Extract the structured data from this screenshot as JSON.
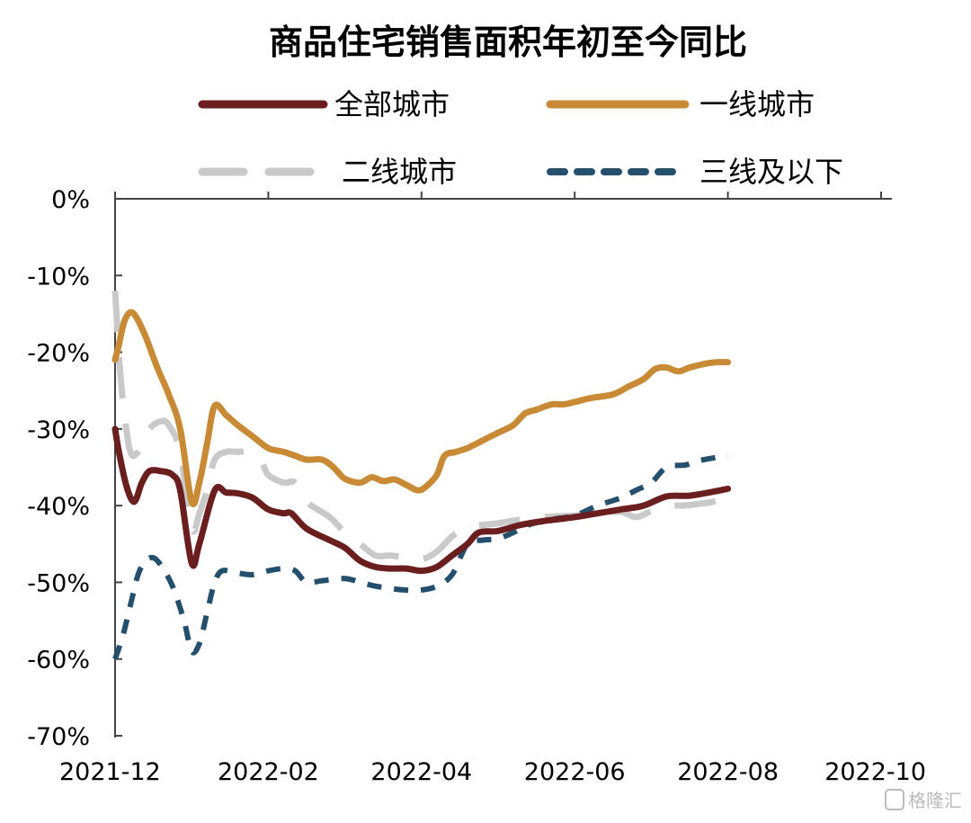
{
  "chart_data": {
    "type": "line",
    "title": "商品住宅销售面积年初至今同比",
    "xlabel": "",
    "ylabel": "",
    "x_ticks": [
      "2021-12",
      "2022-02",
      "2022-04",
      "2022-06",
      "2022-08",
      "2022-10"
    ],
    "y_ticks": [
      "0%",
      "-10%",
      "-20%",
      "-30%",
      "-40%",
      "-50%",
      "-60%",
      "-70%"
    ],
    "ylim": [
      -70,
      0
    ],
    "grid": false,
    "legend_position": "top",
    "series": [
      {
        "name": "全部城市",
        "color": "#6b1e1e",
        "dash": "solid",
        "points": [
          [
            0,
            -30
          ],
          [
            0.05,
            -33
          ],
          [
            0.15,
            -37.5
          ],
          [
            0.25,
            -39.5
          ],
          [
            0.35,
            -37
          ],
          [
            0.45,
            -35.5
          ],
          [
            0.6,
            -35.5
          ],
          [
            0.75,
            -36
          ],
          [
            0.85,
            -38
          ],
          [
            1.0,
            -47.5
          ],
          [
            1.1,
            -45
          ],
          [
            1.3,
            -38
          ],
          [
            1.45,
            -38.3
          ],
          [
            1.6,
            -38.4
          ],
          [
            1.8,
            -39
          ],
          [
            2.0,
            -40.5
          ],
          [
            2.2,
            -41
          ],
          [
            2.3,
            -41
          ],
          [
            2.5,
            -43
          ],
          [
            2.8,
            -44.5
          ],
          [
            3.0,
            -45.5
          ],
          [
            3.2,
            -47.2
          ],
          [
            3.4,
            -48
          ],
          [
            3.6,
            -48.2
          ],
          [
            3.8,
            -48.2
          ],
          [
            4.0,
            -48.5
          ],
          [
            4.2,
            -48
          ],
          [
            4.4,
            -46.5
          ],
          [
            4.6,
            -45
          ],
          [
            4.75,
            -43.5
          ],
          [
            5.0,
            -43.3
          ],
          [
            5.3,
            -42.5
          ],
          [
            5.6,
            -42
          ],
          [
            6.0,
            -41.5
          ],
          [
            6.3,
            -41
          ],
          [
            6.6,
            -40.5
          ],
          [
            6.9,
            -40
          ],
          [
            7.2,
            -38.8
          ],
          [
            7.5,
            -38.7
          ],
          [
            7.8,
            -38.2
          ],
          [
            8.0,
            -37.8
          ]
        ]
      },
      {
        "name": "一线城市",
        "color": "#c88a35",
        "dash": "solid",
        "points": [
          [
            0,
            -21
          ],
          [
            0.05,
            -19
          ],
          [
            0.12,
            -16
          ],
          [
            0.2,
            -14.8
          ],
          [
            0.28,
            -15.5
          ],
          [
            0.4,
            -18
          ],
          [
            0.55,
            -22
          ],
          [
            0.7,
            -25.5
          ],
          [
            0.85,
            -30
          ],
          [
            1.0,
            -39.5
          ],
          [
            1.1,
            -37
          ],
          [
            1.2,
            -32
          ],
          [
            1.3,
            -27
          ],
          [
            1.45,
            -28.2
          ],
          [
            1.6,
            -29.5
          ],
          [
            1.8,
            -31
          ],
          [
            2.0,
            -32.5
          ],
          [
            2.2,
            -33
          ],
          [
            2.35,
            -33.5
          ],
          [
            2.5,
            -34
          ],
          [
            2.7,
            -34
          ],
          [
            2.85,
            -35
          ],
          [
            3.0,
            -36.5
          ],
          [
            3.2,
            -37
          ],
          [
            3.35,
            -36.3
          ],
          [
            3.5,
            -36.8
          ],
          [
            3.65,
            -36.6
          ],
          [
            3.8,
            -37.3
          ],
          [
            3.95,
            -38
          ],
          [
            4.05,
            -37.6
          ],
          [
            4.2,
            -36
          ],
          [
            4.3,
            -33.5
          ],
          [
            4.45,
            -33
          ],
          [
            4.6,
            -32.5
          ],
          [
            4.8,
            -31.5
          ],
          [
            5.0,
            -30.5
          ],
          [
            5.2,
            -29.5
          ],
          [
            5.35,
            -28
          ],
          [
            5.5,
            -27.5
          ],
          [
            5.7,
            -26.8
          ],
          [
            5.85,
            -26.8
          ],
          [
            6.0,
            -26.5
          ],
          [
            6.2,
            -26
          ],
          [
            6.5,
            -25.5
          ],
          [
            6.7,
            -24.5
          ],
          [
            6.9,
            -23.5
          ],
          [
            7.05,
            -22.2
          ],
          [
            7.2,
            -22
          ],
          [
            7.35,
            -22.5
          ],
          [
            7.5,
            -22
          ],
          [
            7.7,
            -21.5
          ],
          [
            7.85,
            -21.3
          ],
          [
            8.0,
            -21.3
          ]
        ]
      },
      {
        "name": "二线城市",
        "color": "#c9c9c9",
        "dash": "long",
        "points": [
          [
            0,
            -12
          ],
          [
            0.03,
            -17
          ],
          [
            0.07,
            -23
          ],
          [
            0.12,
            -28
          ],
          [
            0.2,
            -33
          ],
          [
            0.3,
            -33
          ],
          [
            0.45,
            -30
          ],
          [
            0.6,
            -29
          ],
          [
            0.7,
            -29.5
          ],
          [
            0.85,
            -33
          ],
          [
            1.0,
            -43
          ],
          [
            1.1,
            -41
          ],
          [
            1.2,
            -38
          ],
          [
            1.3,
            -34
          ],
          [
            1.45,
            -33
          ],
          [
            1.6,
            -33
          ],
          [
            1.75,
            -33
          ],
          [
            1.9,
            -34
          ],
          [
            2.0,
            -36
          ],
          [
            2.2,
            -37
          ],
          [
            2.35,
            -37
          ],
          [
            2.5,
            -39.5
          ],
          [
            2.8,
            -41.5
          ],
          [
            3.0,
            -43.5
          ],
          [
            3.2,
            -45
          ],
          [
            3.4,
            -46.5
          ],
          [
            3.6,
            -46.5
          ],
          [
            3.8,
            -46.8
          ],
          [
            4.0,
            -47
          ],
          [
            4.2,
            -46
          ],
          [
            4.4,
            -44
          ],
          [
            4.6,
            -42.8
          ],
          [
            4.8,
            -42.5
          ],
          [
            5.0,
            -42.3
          ],
          [
            5.3,
            -41.8
          ],
          [
            5.6,
            -41.5
          ],
          [
            6.0,
            -41.3
          ],
          [
            6.3,
            -41
          ],
          [
            6.6,
            -40.8
          ],
          [
            6.8,
            -41.5
          ],
          [
            7.0,
            -40.7
          ],
          [
            7.2,
            -40
          ],
          [
            7.4,
            -40
          ],
          [
            7.6,
            -39.8
          ],
          [
            7.8,
            -39.5
          ],
          [
            8.0,
            -39
          ]
        ]
      },
      {
        "name": "三线及以下",
        "color": "#24506e",
        "dash": "short",
        "points": [
          [
            0,
            -60
          ],
          [
            0.1,
            -57
          ],
          [
            0.2,
            -53
          ],
          [
            0.3,
            -49
          ],
          [
            0.4,
            -47.2
          ],
          [
            0.5,
            -46.8
          ],
          [
            0.6,
            -47.8
          ],
          [
            0.75,
            -50.5
          ],
          [
            0.9,
            -55
          ],
          [
            1.0,
            -59
          ],
          [
            1.1,
            -58
          ],
          [
            1.2,
            -54
          ],
          [
            1.3,
            -50
          ],
          [
            1.4,
            -48.5
          ],
          [
            1.6,
            -48.8
          ],
          [
            1.8,
            -49
          ],
          [
            2.0,
            -48.5
          ],
          [
            2.2,
            -48.2
          ],
          [
            2.35,
            -48.5
          ],
          [
            2.5,
            -50
          ],
          [
            2.7,
            -49.8
          ],
          [
            3.0,
            -49.5
          ],
          [
            3.2,
            -50
          ],
          [
            3.4,
            -50.5
          ],
          [
            3.6,
            -50.8
          ],
          [
            3.8,
            -51
          ],
          [
            4.0,
            -51
          ],
          [
            4.2,
            -50.5
          ],
          [
            4.4,
            -49
          ],
          [
            4.6,
            -45
          ],
          [
            4.8,
            -44.5
          ],
          [
            5.0,
            -44.3
          ],
          [
            5.2,
            -43.5
          ],
          [
            5.4,
            -42.5
          ],
          [
            5.7,
            -41.8
          ],
          [
            6.0,
            -41.3
          ],
          [
            6.3,
            -40
          ],
          [
            6.6,
            -39
          ],
          [
            6.8,
            -38
          ],
          [
            7.0,
            -37
          ],
          [
            7.2,
            -35
          ],
          [
            7.45,
            -34.7
          ],
          [
            7.6,
            -34.2
          ],
          [
            7.8,
            -33.8
          ],
          [
            8.0,
            -33.5
          ]
        ]
      }
    ]
  },
  "watermark": "格隆汇"
}
